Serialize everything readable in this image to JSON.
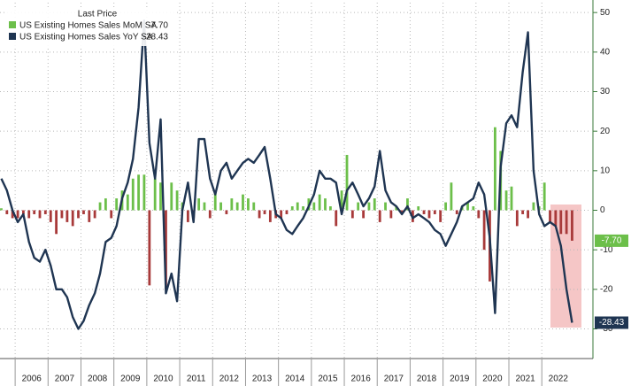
{
  "chart_data": {
    "type": "bar-line",
    "legend_title": "Last Price",
    "xlim": [
      2005.54,
      2023.5
    ],
    "xticks": [
      2006,
      2007,
      2008,
      2009,
      2010,
      2011,
      2012,
      2013,
      2014,
      2015,
      2016,
      2017,
      2018,
      2019,
      2020,
      2021,
      2022
    ],
    "ylim": [
      -37.5,
      52.5
    ],
    "yticks": [
      50,
      40,
      30,
      20,
      10,
      0,
      -10,
      -20,
      -30
    ],
    "grid": true,
    "x": [
      2005.58,
      2005.75,
      2005.92,
      2006.08,
      2006.25,
      2006.42,
      2006.58,
      2006.75,
      2006.92,
      2007.08,
      2007.25,
      2007.42,
      2007.58,
      2007.75,
      2007.92,
      2008.08,
      2008.25,
      2008.42,
      2008.58,
      2008.75,
      2008.92,
      2009.08,
      2009.25,
      2009.42,
      2009.58,
      2009.75,
      2009.92,
      2010.08,
      2010.25,
      2010.42,
      2010.58,
      2010.75,
      2010.92,
      2011.08,
      2011.25,
      2011.42,
      2011.58,
      2011.75,
      2011.92,
      2012.08,
      2012.25,
      2012.42,
      2012.58,
      2012.75,
      2012.92,
      2013.08,
      2013.25,
      2013.42,
      2013.58,
      2013.75,
      2013.92,
      2014.08,
      2014.25,
      2014.42,
      2014.58,
      2014.75,
      2014.92,
      2015.08,
      2015.25,
      2015.42,
      2015.58,
      2015.75,
      2015.92,
      2016.08,
      2016.25,
      2016.42,
      2016.58,
      2016.75,
      2016.92,
      2017.08,
      2017.25,
      2017.42,
      2017.58,
      2017.75,
      2017.92,
      2018.08,
      2018.25,
      2018.42,
      2018.58,
      2018.75,
      2018.92,
      2019.08,
      2019.25,
      2019.42,
      2019.58,
      2019.75,
      2019.92,
      2020.08,
      2020.25,
      2020.42,
      2020.58,
      2020.75,
      2020.92,
      2021.08,
      2021.25,
      2021.42,
      2021.58,
      2021.75,
      2021.92,
      2022.08,
      2022.25,
      2022.42,
      2022.58,
      2022.75,
      2022.92
    ],
    "series": [
      {
        "name": "US Existing Homes Sales MoM SA",
        "type": "bar",
        "color": "#6cbf4a",
        "negative_color": "#a83a3a",
        "last_label": "-7.70",
        "values": [
          0.5,
          -1,
          -2,
          -2,
          -1,
          -2,
          -1,
          -2,
          -1,
          -3,
          -6,
          -2,
          -3,
          -4,
          -2,
          -1,
          -3,
          -2,
          2,
          3,
          -2,
          3,
          5,
          4,
          8,
          9,
          9,
          -19,
          8,
          7,
          -20,
          7,
          5,
          2,
          -3,
          -2,
          3,
          2,
          -2,
          5,
          2,
          -1,
          3,
          2,
          4,
          3,
          2,
          -2,
          -1,
          -3,
          -2,
          -2,
          -1,
          1,
          2,
          1,
          3,
          2,
          4,
          3,
          1,
          -4,
          5,
          14,
          -2,
          2,
          -2,
          2,
          3,
          -3,
          2,
          -2,
          1,
          -1,
          3,
          -3,
          1,
          -1,
          -2,
          -1,
          -3,
          2,
          7,
          -1,
          1,
          2,
          1,
          -2,
          -10,
          -18,
          21,
          15,
          5,
          6,
          -4,
          -1,
          -2,
          2,
          1,
          7,
          -3,
          -4,
          -6,
          -6,
          -7.7
        ]
      },
      {
        "name": "US Existing Homes Sales YoY SA",
        "type": "line",
        "color": "#1f3552",
        "last_label": "-28.43",
        "values": [
          8,
          5,
          0,
          -3,
          -1,
          -8,
          -12,
          -13,
          -10,
          -14,
          -20,
          -20,
          -22,
          -27,
          -30,
          -28,
          -24,
          -21,
          -16,
          -8,
          -7,
          -4,
          3,
          7,
          13,
          26,
          48,
          17,
          8,
          23,
          -21,
          -16,
          -23,
          0,
          7,
          -3,
          18,
          18,
          8,
          4,
          10,
          12,
          8,
          10,
          12,
          13,
          12,
          14,
          16,
          8,
          -1,
          -2,
          -5,
          -6,
          -4,
          -2,
          1,
          4,
          10,
          8,
          8,
          7,
          -1,
          5,
          7,
          4,
          1,
          3,
          6,
          15,
          5,
          2,
          1,
          -1,
          1,
          -2,
          -1,
          -2,
          -3,
          -5,
          -6,
          -9,
          -6,
          -3,
          1,
          2,
          3,
          7,
          4,
          -7,
          -26,
          11,
          22,
          24,
          21,
          35,
          45,
          10,
          -1,
          -4,
          -3,
          -4,
          -9,
          -20,
          -28.43
        ]
      }
    ]
  }
}
